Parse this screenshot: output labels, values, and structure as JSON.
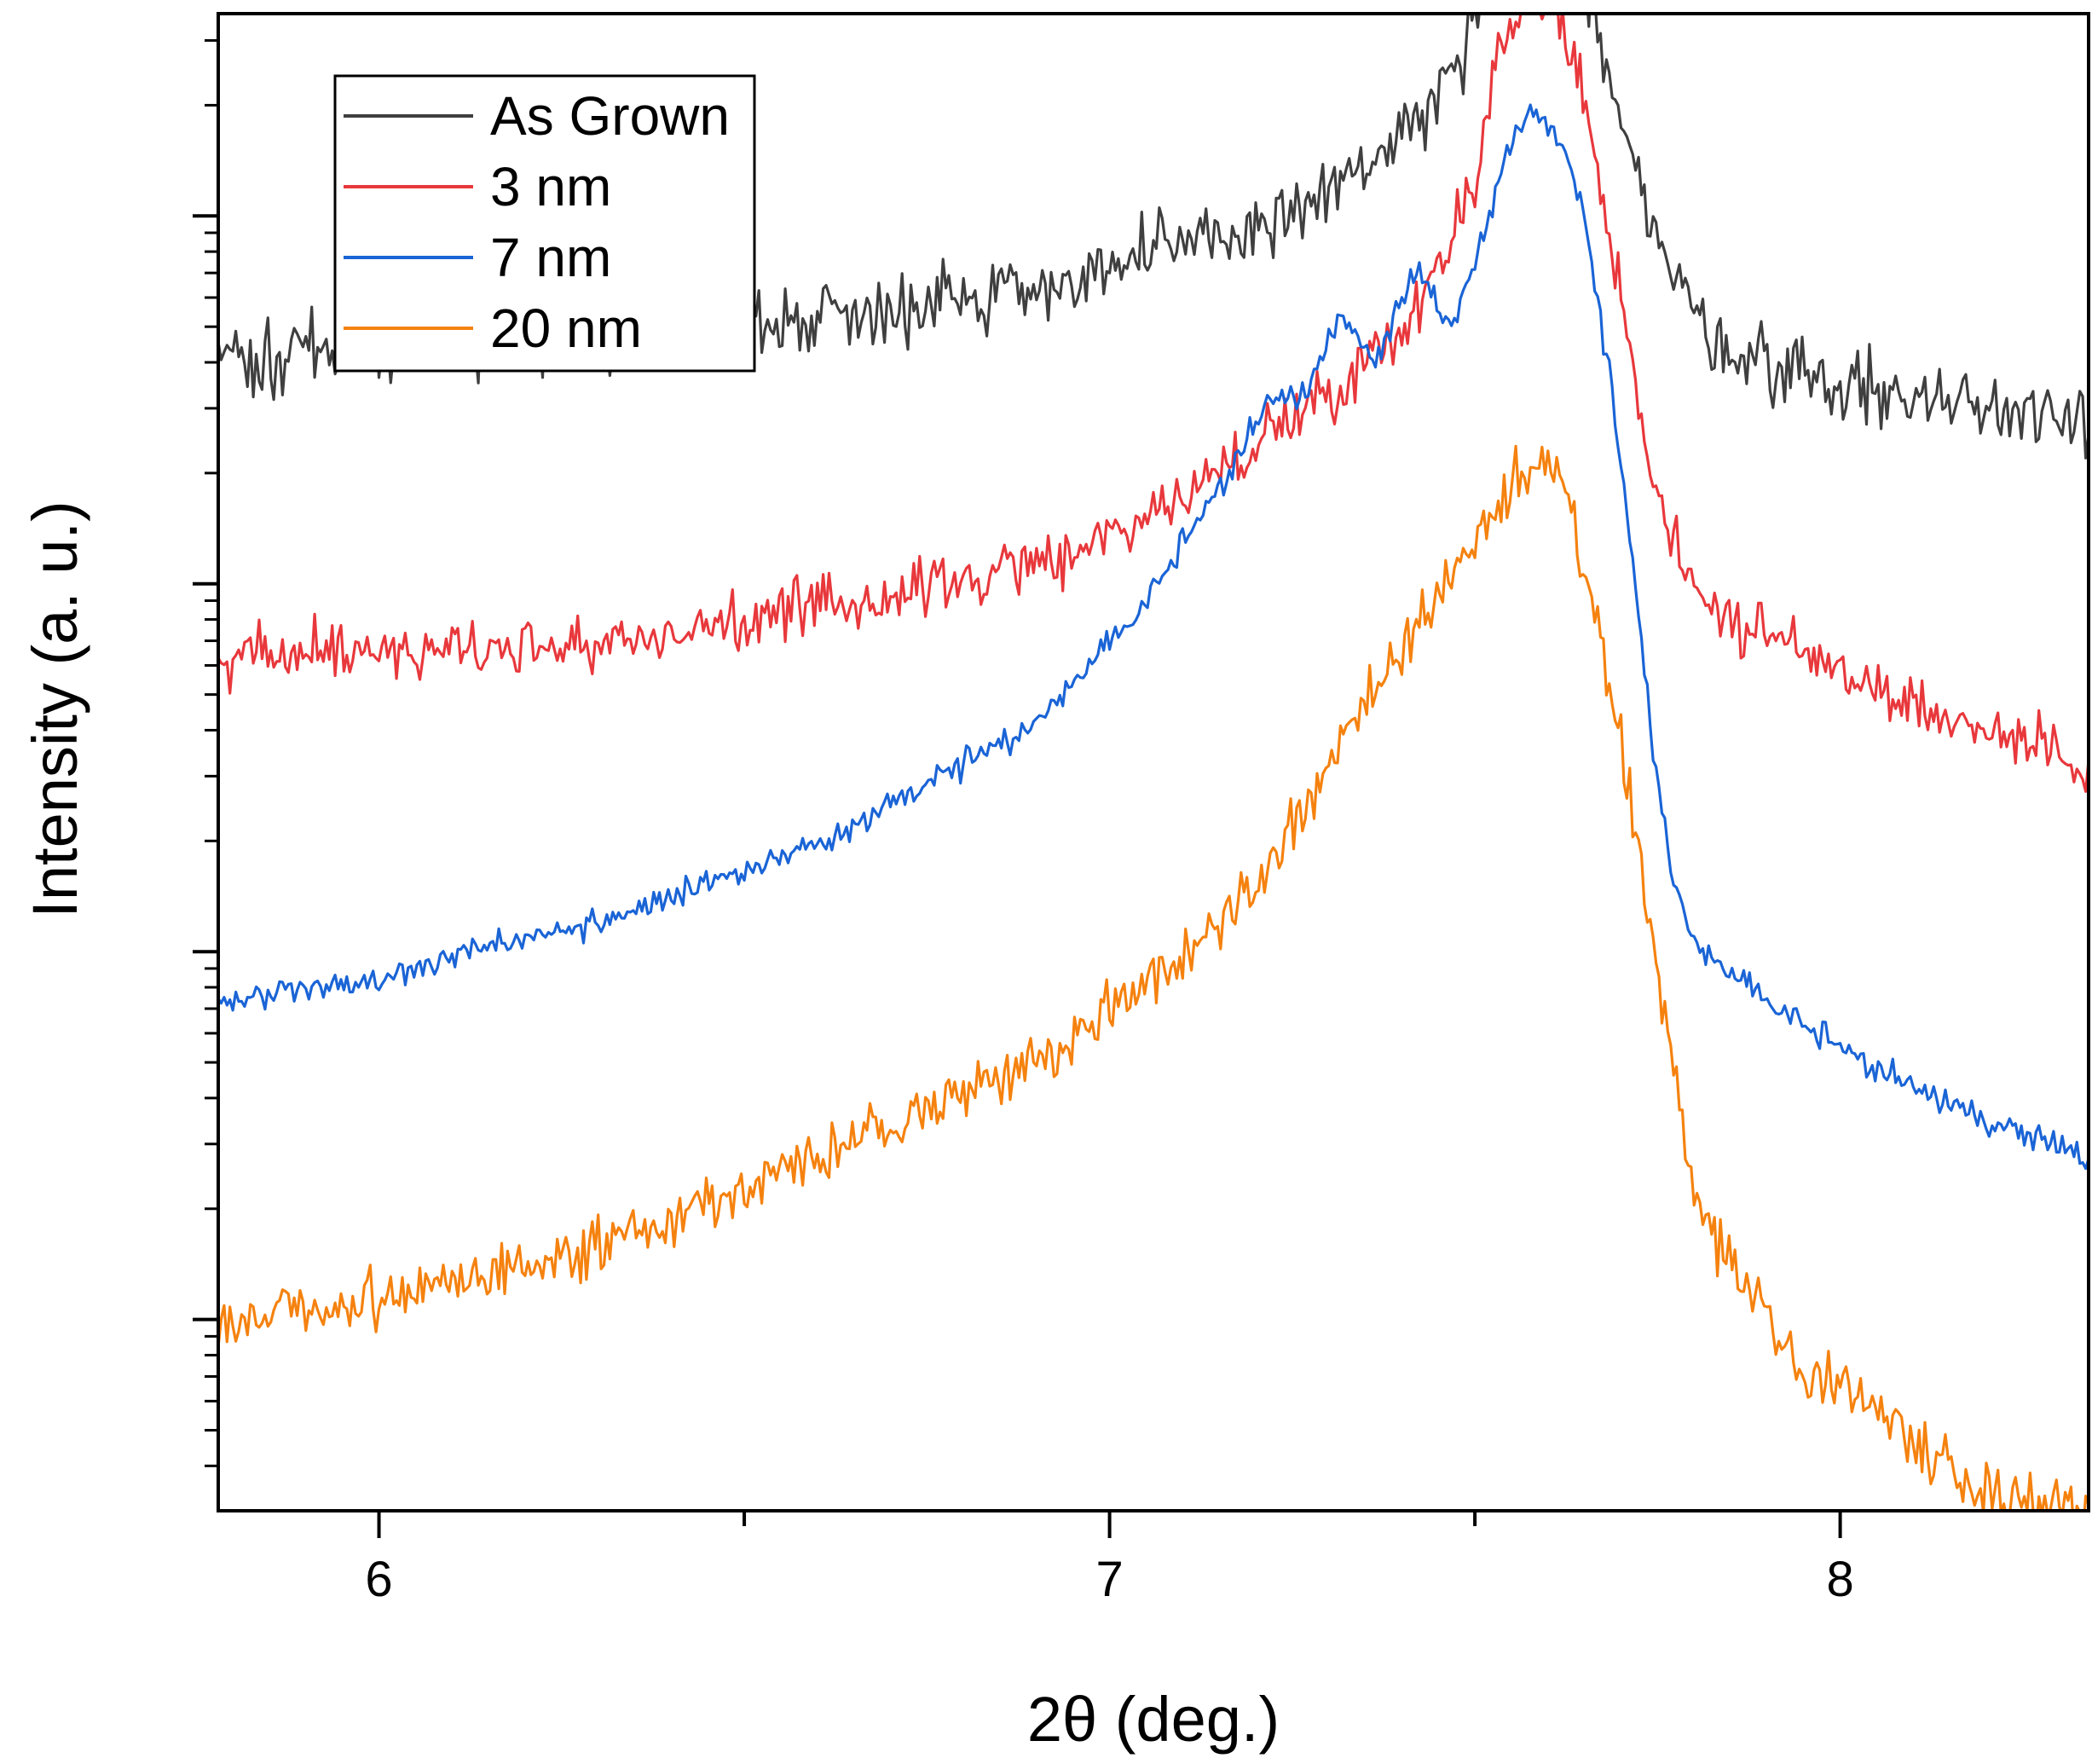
{
  "chart_data": {
    "type": "line",
    "title": "",
    "xlabel": "2θ (deg.)",
    "ylabel": "Intensity (a. u.)",
    "xlim": [
      5.78,
      8.34
    ],
    "x_ticks": [
      6,
      7,
      8
    ],
    "x_tick_labels": [
      "6",
      "7",
      "8"
    ],
    "x_minor_ticks": [
      6.5,
      7.5
    ],
    "y_scale": "log",
    "ylim_decades": [
      -0.52,
      3.55
    ],
    "y_major_ticks_decades": [
      0,
      1,
      2,
      3
    ],
    "y_tick_labels": [],
    "grid": false,
    "legend_position": "top-left",
    "series": [
      {
        "name": "As Grown",
        "color": "#3f3f3f",
        "offset": 3.0,
        "noise": 0.09,
        "seed": 11,
        "points": [
          [
            5.78,
            -0.38
          ],
          [
            6.0,
            -0.36
          ],
          [
            6.3,
            -0.33
          ],
          [
            6.6,
            -0.27
          ],
          [
            6.9,
            -0.19
          ],
          [
            7.1,
            -0.09
          ],
          [
            7.2,
            -0.03
          ],
          [
            7.3,
            0.06
          ],
          [
            7.35,
            0.14
          ],
          [
            7.4,
            0.21
          ],
          [
            7.45,
            0.31
          ],
          [
            7.5,
            0.52
          ],
          [
            7.53,
            0.72
          ],
          [
            7.56,
            0.84
          ],
          [
            7.58,
            0.86
          ],
          [
            7.61,
            0.84
          ],
          [
            7.64,
            0.72
          ],
          [
            7.67,
            0.52
          ],
          [
            7.7,
            0.29
          ],
          [
            7.73,
            0.06
          ],
          [
            7.76,
            -0.12
          ],
          [
            7.8,
            -0.27
          ],
          [
            7.86,
            -0.37
          ],
          [
            8.0,
            -0.46
          ],
          [
            8.15,
            -0.51
          ],
          [
            8.34,
            -0.53
          ]
        ]
      },
      {
        "name": "3 nm",
        "color": "#e8383c",
        "offset": 2.0,
        "noise": 0.07,
        "seed": 23,
        "points": [
          [
            5.78,
            -0.21
          ],
          [
            6.0,
            -0.18
          ],
          [
            6.3,
            -0.16
          ],
          [
            6.6,
            -0.07
          ],
          [
            6.9,
            0.05
          ],
          [
            7.1,
            0.23
          ],
          [
            7.2,
            0.38
          ],
          [
            7.3,
            0.53
          ],
          [
            7.35,
            0.6
          ],
          [
            7.4,
            0.7
          ],
          [
            7.45,
            0.86
          ],
          [
            7.5,
            1.12
          ],
          [
            7.53,
            1.42
          ],
          [
            7.56,
            1.56
          ],
          [
            7.58,
            1.6
          ],
          [
            7.61,
            1.56
          ],
          [
            7.64,
            1.41
          ],
          [
            7.67,
            1.12
          ],
          [
            7.7,
            0.78
          ],
          [
            7.73,
            0.42
          ],
          [
            7.76,
            0.18
          ],
          [
            7.8,
            -0.01
          ],
          [
            7.86,
            -0.11
          ],
          [
            8.0,
            -0.23
          ],
          [
            8.15,
            -0.37
          ],
          [
            8.34,
            -0.48
          ]
        ]
      },
      {
        "name": "7 nm",
        "color": "#1a64d6",
        "offset": 1.0,
        "noise": 0.035,
        "seed": 37,
        "points": [
          [
            5.78,
            -0.14
          ],
          [
            6.0,
            -0.07
          ],
          [
            6.3,
            0.08
          ],
          [
            6.6,
            0.28
          ],
          [
            6.9,
            0.62
          ],
          [
            7.05,
            0.94
          ],
          [
            7.15,
            1.26
          ],
          [
            7.22,
            1.5
          ],
          [
            7.27,
            1.51
          ],
          [
            7.32,
            1.74
          ],
          [
            7.36,
            1.58
          ],
          [
            7.42,
            1.85
          ],
          [
            7.47,
            1.7
          ],
          [
            7.51,
            1.93
          ],
          [
            7.55,
            2.21
          ],
          [
            7.58,
            2.27
          ],
          [
            7.62,
            2.2
          ],
          [
            7.65,
            1.98
          ],
          [
            7.68,
            1.62
          ],
          [
            7.71,
            1.16
          ],
          [
            7.74,
            0.62
          ],
          [
            7.77,
            0.2
          ],
          [
            7.8,
            0.02
          ],
          [
            7.86,
            -0.08
          ],
          [
            7.95,
            -0.21
          ],
          [
            8.1,
            -0.37
          ],
          [
            8.2,
            -0.47
          ],
          [
            8.34,
            -0.56
          ]
        ]
      },
      {
        "name": "20 nm",
        "color": "#f5820f",
        "offset": 0.0,
        "noise": 0.07,
        "seed": 53,
        "points": [
          [
            5.78,
            0.0
          ],
          [
            6.0,
            0.05
          ],
          [
            6.3,
            0.2
          ],
          [
            6.6,
            0.44
          ],
          [
            6.9,
            0.7
          ],
          [
            7.1,
            0.98
          ],
          [
            7.2,
            1.18
          ],
          [
            7.3,
            1.5
          ],
          [
            7.4,
            1.82
          ],
          [
            7.5,
            2.12
          ],
          [
            7.55,
            2.28
          ],
          [
            7.58,
            2.33
          ],
          [
            7.62,
            2.25
          ],
          [
            7.66,
            1.98
          ],
          [
            7.7,
            1.54
          ],
          [
            7.74,
            1.08
          ],
          [
            7.78,
            0.6
          ],
          [
            7.8,
            0.34
          ],
          [
            7.86,
            0.12
          ],
          [
            7.95,
            -0.12
          ],
          [
            8.1,
            -0.32
          ],
          [
            8.2,
            -0.47
          ],
          [
            8.34,
            -0.54
          ]
        ]
      }
    ]
  }
}
